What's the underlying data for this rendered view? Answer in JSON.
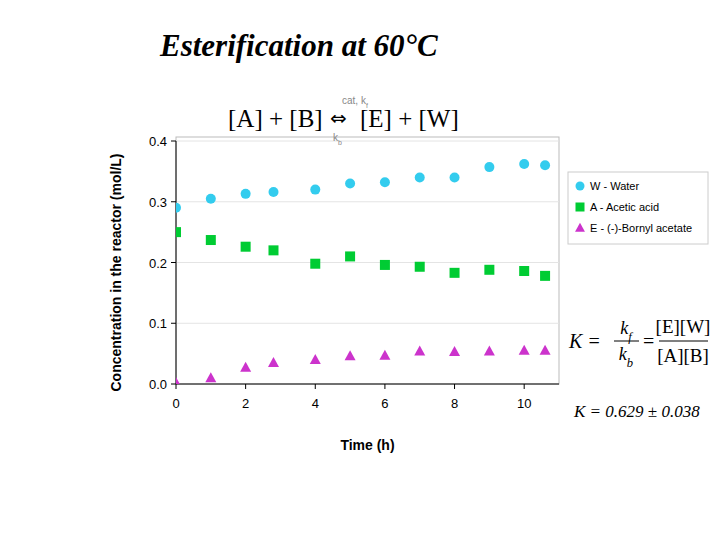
{
  "chart_data": {
    "type": "scatter",
    "title": "Esterification at 60°C",
    "x_label": "Time (h)",
    "y_label": "Concentration in the reactor (mol/L)",
    "x": [
      0,
      1,
      2,
      2.8,
      4,
      5,
      6,
      7,
      8,
      9,
      10,
      10.6
    ],
    "series": [
      {
        "name": "W - Water",
        "color": "#33ccee",
        "marker": "circle",
        "values": [
          0.29,
          0.305,
          0.313,
          0.316,
          0.32,
          0.33,
          0.332,
          0.34,
          0.34,
          0.357,
          0.362,
          0.36
        ]
      },
      {
        "name": "A - Acetic acid",
        "color": "#00cc33",
        "marker": "square",
        "values": [
          0.25,
          0.237,
          0.226,
          0.22,
          0.198,
          0.21,
          0.196,
          0.193,
          0.183,
          0.188,
          0.186,
          0.178
        ]
      },
      {
        "name": "E - (-)-Bornyl acetate",
        "color": "#cc33cc",
        "marker": "triangle",
        "values": [
          0.002,
          0.01,
          0.027,
          0.035,
          0.04,
          0.046,
          0.047,
          0.054,
          0.053,
          0.054,
          0.055,
          0.055
        ]
      }
    ],
    "xlim": [
      0,
      11
    ],
    "xticks": [
      0,
      2,
      4,
      6,
      8,
      10
    ],
    "ylim": [
      0,
      0.4
    ],
    "yticks": [
      {
        "value": 0,
        "label": "0.0"
      },
      0.1,
      0.2,
      0.3,
      0.4
    ],
    "grid": true,
    "legend": "right",
    "annotations": {
      "reaction_left": "[A] + [B]",
      "reaction_arrow": "⇔",
      "arrow_top": "cat, kf",
      "arrow_bottom": "kb",
      "reaction_right": "[E] + [W]",
      "k_def": "K =",
      "k_num": "kf",
      "k_den": "kb",
      "equals": "=",
      "conc_num": "[E][W]",
      "conc_den": "[A][B]",
      "k_value": "K = 0.629 ± 0.038"
    }
  }
}
